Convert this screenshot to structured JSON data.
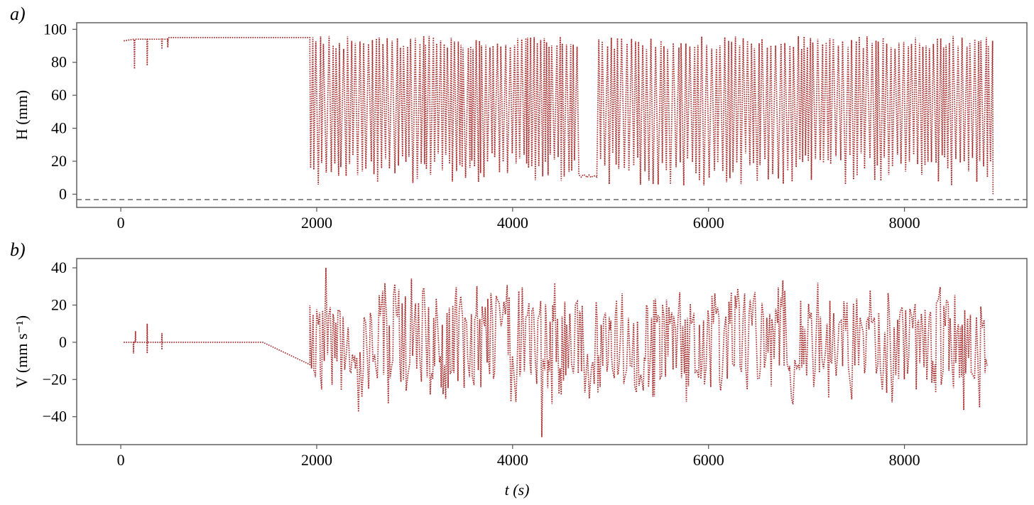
{
  "colors": {
    "series": "#a52a2a",
    "axis": "#555555"
  },
  "chart_data": [
    {
      "panel_label": "a)",
      "type": "line",
      "xlabel": "",
      "ylabel": "H (mm)",
      "xlim": [
        -450,
        9250
      ],
      "ylim": [
        -8,
        104
      ],
      "x_ticks": [
        0,
        2000,
        4000,
        6000,
        8000
      ],
      "x_tick_labels": [
        "0",
        "2000",
        "4000",
        "6000",
        "8000"
      ],
      "y_ticks": [
        0,
        20,
        40,
        60,
        80,
        100
      ],
      "y_tick_labels": [
        "0",
        "20",
        "40",
        "60",
        "80",
        "100"
      ],
      "reference_line": 0,
      "series": [
        {
          "style": "dotted",
          "segments": [
            {
              "t_start": 30,
              "t_end": 480,
              "kind": "steady-with-dips",
              "level": 93,
              "dips": [
                [
                  140,
                  76
                ],
                [
                  270,
                  78
                ],
                [
                  420,
                  88
                ],
                [
                  480,
                  89
                ]
              ]
            },
            {
              "t_start": 480,
              "t_end": 1930,
              "kind": "steady",
              "level": 95
            },
            {
              "t_start": 1930,
              "t_end": 8900,
              "kind": "oscillating",
              "min": 4,
              "max": 97,
              "note": "rapid oscillation between ~5 and ~95 mm; plateau near 10 mm around t = 4700-4850"
            }
          ]
        }
      ]
    },
    {
      "panel_label": "b)",
      "type": "line",
      "xlabel": "t (s)",
      "ylabel": "V (mm s⁻¹)",
      "xlim": [
        -450,
        9250
      ],
      "ylim": [
        -55,
        45
      ],
      "x_ticks": [
        0,
        2000,
        4000,
        6000,
        8000
      ],
      "x_tick_labels": [
        "0",
        "2000",
        "4000",
        "6000",
        "8000"
      ],
      "y_ticks": [
        -40,
        -20,
        0,
        20,
        40
      ],
      "y_tick_labels": [
        "−40",
        "−20",
        "0",
        "20",
        "40"
      ],
      "series": [
        {
          "style": "dotted",
          "segments": [
            {
              "t_start": 30,
              "t_end": 480,
              "kind": "small-spikes",
              "level": 0,
              "spikes": [
                [
                  130,
                  -6
                ],
                [
                  150,
                  6
                ],
                [
                  270,
                  10
                ],
                [
                  270,
                  -6
                ],
                [
                  420,
                  5
                ],
                [
                  420,
                  -4
                ]
              ]
            },
            {
              "t_start": 480,
              "t_end": 1450,
              "kind": "steady",
              "level": 0
            },
            {
              "t_start": 1450,
              "t_end": 1930,
              "kind": "ramp",
              "from": 0,
              "to": -12
            },
            {
              "t_start": 1930,
              "t_end": 8850,
              "kind": "oscillating",
              "min": -51,
              "max": 40,
              "note": "spiky fluctuations mostly between -30 and +35 mm/s; minimum about -51 near t = 4300"
            }
          ]
        }
      ]
    }
  ]
}
